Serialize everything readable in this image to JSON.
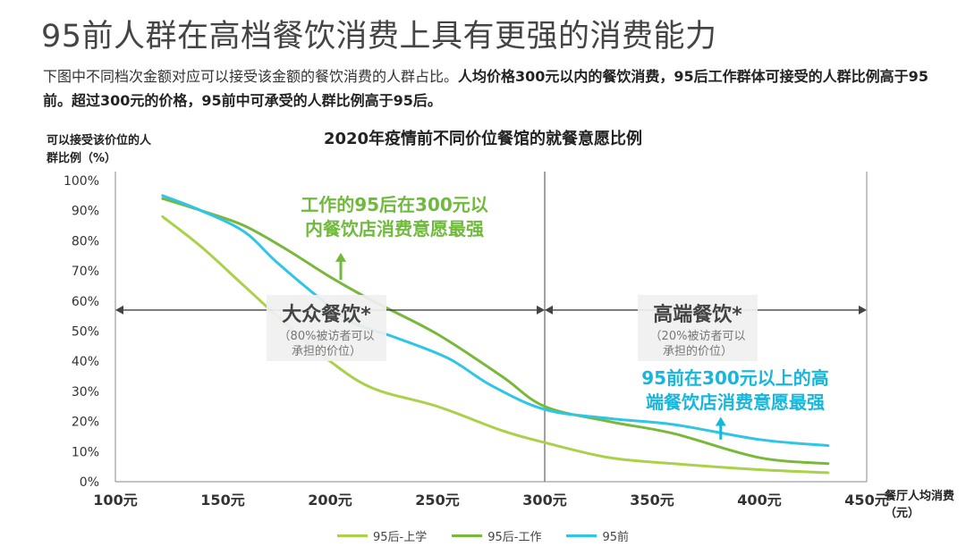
{
  "header": {
    "title": "95前人群在高档餐饮消费上具有更强的消费能力",
    "desc_plain": "下图中不同档次金额对应可以接受该金额的餐饮消费的人群占比。",
    "desc_bold": "人均价格300元以内的餐饮消费，95后工作群体可接受的人群比例高于95前。超过300元的价格，95前中可承受的人群比例高于95后。"
  },
  "annotations": {
    "mass_name": "大众餐饮*",
    "mass_note": "（80%被访者可以承担的价位）",
    "high_name": "高端餐饮*",
    "high_note": "（20%被访者可以承担的价位）",
    "callout_work": "工作的95后在300元以内餐饮店消费意愿最强",
    "callout_pre95": "95前在300元以上的高端餐饮店消费意愿最强"
  },
  "colors": {
    "student": "#a9d14a",
    "work": "#78b83a",
    "pre95": "#2ec5e6",
    "callout_green": "#6fba3c",
    "callout_blue": "#17b6dc"
  },
  "chart_data": {
    "type": "line",
    "title": "2020年疫情前不同价位餐馆的就餐意愿比例",
    "ylabel": "可以接受该价位的人群比例（%）",
    "xlabel": "餐厅人均消费（元）",
    "xlim": [
      100,
      450
    ],
    "ylim": [
      0,
      100
    ],
    "x_ticks": [
      "100元",
      "150元",
      "200元",
      "250元",
      "300元",
      "350元",
      "400元",
      "450元"
    ],
    "y_ticks": [
      "0%",
      "10%",
      "20%",
      "30%",
      "40%",
      "50%",
      "60%",
      "70%",
      "80%",
      "90%",
      "100%"
    ],
    "divider_x": 300,
    "series": [
      {
        "name": "95后-上学",
        "color": "#a9d14a",
        "x": [
          122,
          140,
          160,
          180,
          200,
          220,
          250,
          280,
          300,
          330,
          360,
          400,
          432
        ],
        "y": [
          88,
          78,
          65,
          52,
          40,
          31,
          25,
          17,
          13,
          8,
          6,
          4,
          3
        ]
      },
      {
        "name": "95后-工作",
        "color": "#78b83a",
        "x": [
          122,
          140,
          160,
          180,
          200,
          220,
          250,
          280,
          300,
          330,
          360,
          400,
          432
        ],
        "y": [
          94,
          90,
          85,
          77,
          68,
          60,
          49,
          35,
          25,
          20,
          16,
          8,
          6
        ]
      },
      {
        "name": "95前",
        "color": "#2ec5e6",
        "x": [
          122,
          140,
          160,
          175,
          195,
          210,
          230,
          255,
          275,
          300,
          330,
          360,
          400,
          432
        ],
        "y": [
          95,
          90,
          83,
          73,
          61,
          53,
          48,
          41,
          32,
          24,
          21,
          19,
          14,
          12
        ]
      }
    ]
  }
}
